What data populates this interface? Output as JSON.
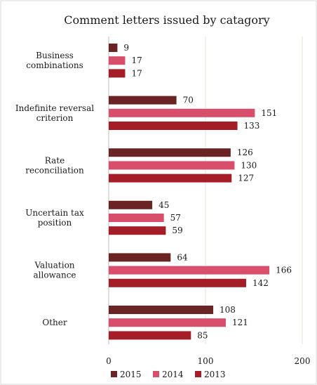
{
  "chart_data": {
    "type": "bar",
    "orientation": "horizontal",
    "title": "Comment letters issued by catagory",
    "categories": [
      [
        "Business",
        "combinations"
      ],
      [
        "Indefinite reversal",
        "criterion"
      ],
      [
        "Rate",
        "reconciliation"
      ],
      [
        "Uncertain tax",
        "position"
      ],
      [
        "Valuation",
        "allowance"
      ],
      [
        "Other"
      ]
    ],
    "series": [
      {
        "name": "2015",
        "color": "#6b2424",
        "values": [
          9,
          70,
          126,
          45,
          64,
          108
        ]
      },
      {
        "name": "2014",
        "color": "#d94f6b",
        "values": [
          17,
          151,
          130,
          57,
          166,
          121
        ]
      },
      {
        "name": "2013",
        "color": "#a51d27",
        "values": [
          17,
          133,
          127,
          59,
          142,
          85
        ]
      }
    ],
    "xlim": [
      0,
      200
    ],
    "xticks": [
      0,
      100,
      200
    ],
    "grid": true,
    "legend_position": "bottom",
    "data_labels": true
  }
}
